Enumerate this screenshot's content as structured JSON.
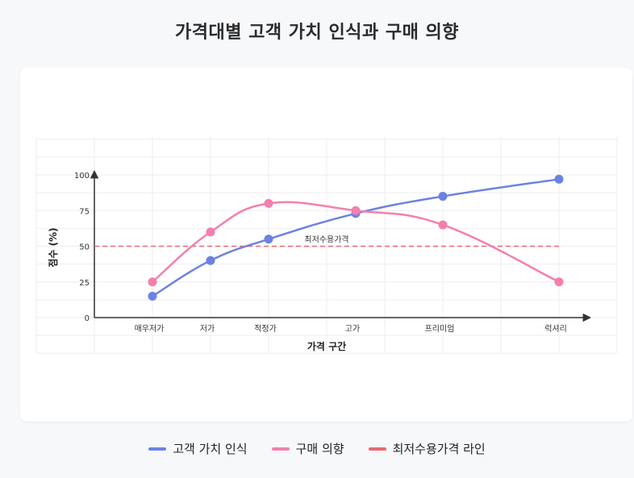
{
  "page_title": "가격대별 고객 가치 인식과 구매 의향",
  "chart_data": {
    "type": "line",
    "categories": [
      "매우저가",
      "저가",
      "적정가",
      "고가",
      "프리미엄",
      "럭셔리"
    ],
    "x_positions": [
      1,
      2,
      3,
      4.5,
      6,
      8
    ],
    "series": [
      {
        "name": "고객 가치 인식",
        "values": [
          15,
          40,
          55,
          73,
          85,
          97
        ],
        "color": "#6b82e3"
      },
      {
        "name": "구매 의향",
        "values": [
          25,
          60,
          80,
          75,
          65,
          25
        ],
        "color": "#f47fae"
      }
    ],
    "reference_line": {
      "name": "최저수용가격 라인",
      "value": 50,
      "label": "최저수용가격",
      "color": "#e8696f"
    },
    "xlabel": "가격 구간",
    "ylabel": "점수 (%)",
    "yticks": [
      0,
      25,
      50,
      75,
      100
    ],
    "ylim": [
      0,
      100
    ],
    "xlim": [
      0,
      8.5
    ],
    "grid": true,
    "legend_position": "bottom-center"
  },
  "legend": [
    {
      "label": "고객 가치 인식",
      "color": "#6b82e3"
    },
    {
      "label": "구매 의향",
      "color": "#f47fae"
    },
    {
      "label": "최저수용가격 라인",
      "color": "#e8696f"
    }
  ]
}
